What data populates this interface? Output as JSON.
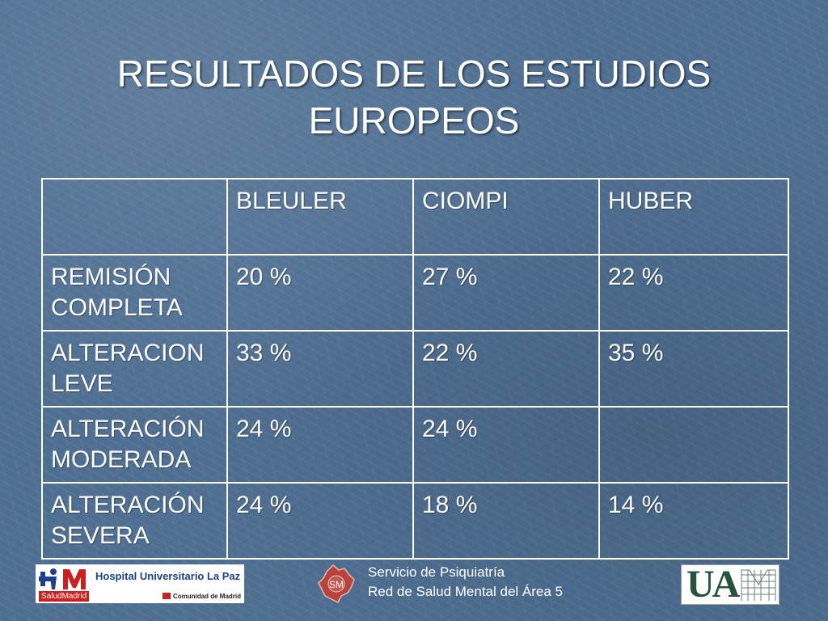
{
  "title": {
    "line1": "RESULTADOS DE LOS ESTUDIOS",
    "line2": "EUROPEOS"
  },
  "table": {
    "header": [
      "",
      "BLEULER",
      "CIOMPI",
      "HUBER"
    ],
    "rows": [
      {
        "label_lines": [
          "REMISIÓN",
          "COMPLETA"
        ],
        "values": [
          "20 %",
          "27 %",
          "22 %"
        ]
      },
      {
        "label_lines": [
          "ALTERACION",
          "LEVE"
        ],
        "values": [
          "33 %",
          "22 %",
          "35 %"
        ]
      },
      {
        "label_lines": [
          "ALTERACIÓN",
          "MODERADA"
        ],
        "values": [
          "24 %",
          "24 %",
          ""
        ]
      },
      {
        "label_lines": [
          "ALTERACIÓN",
          "SEVERA"
        ],
        "values": [
          "24 %",
          "18 %",
          "14 %"
        ]
      }
    ]
  },
  "footer": {
    "hospital_name": "Hospital Universitario La Paz",
    "salud_madrid": "SaludMadrid",
    "comunidad": "Comunidad de Madrid",
    "sm_logo_text": "SM",
    "service_line1": "Servicio de Psiquiatría",
    "service_line2": "Red de Salud Mental del Área 5",
    "uam_logo_text": "UA"
  },
  "colors": {
    "background": "#4f6f92",
    "text": "#ffffff",
    "table_border": "#ffffff",
    "hospital_blue": "#1d3f8c",
    "madrid_red": "#cc1f1f",
    "uam_green": "#25533e"
  }
}
